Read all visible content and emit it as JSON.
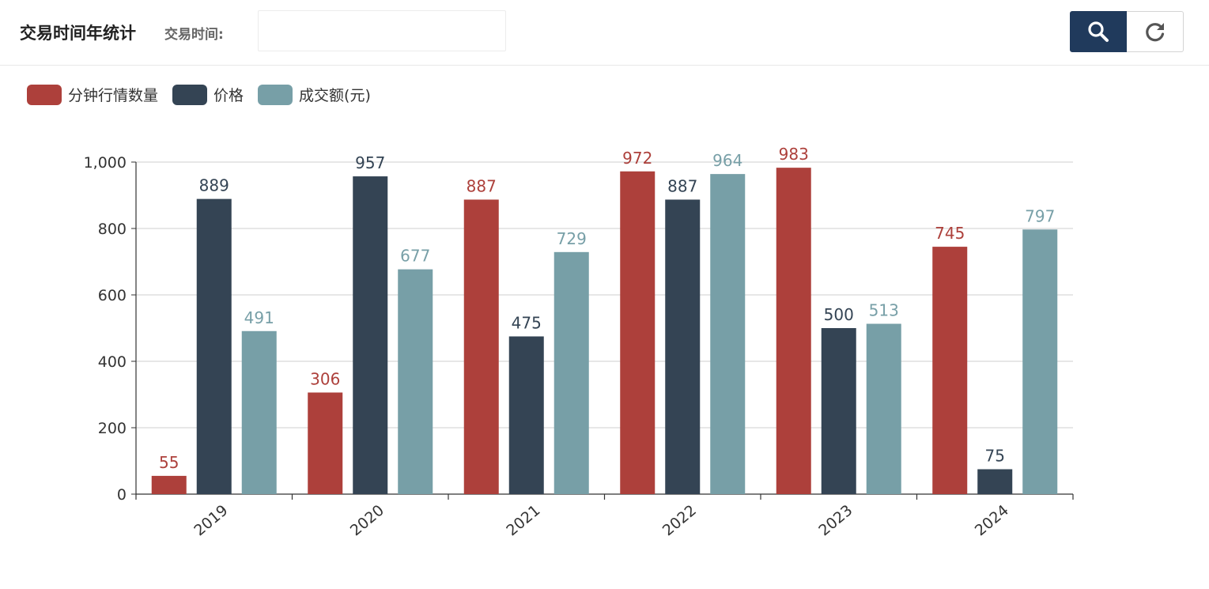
{
  "header": {
    "title": "交易时间年统计",
    "date_label": "交易时间:",
    "date_value": "",
    "search_icon": "search-icon",
    "reset_icon": "refresh-icon",
    "accent_color": "#203a5c"
  },
  "chart_data": {
    "type": "bar",
    "categories": [
      "2019",
      "2020",
      "2021",
      "2022",
      "2023",
      "2024"
    ],
    "series": [
      {
        "name": "分钟行情数量",
        "color": "#ad403b",
        "values": [
          55,
          306,
          887,
          972,
          983,
          745
        ]
      },
      {
        "name": "价格",
        "color": "#344454",
        "values": [
          889,
          957,
          475,
          887,
          500,
          75
        ]
      },
      {
        "name": "成交额(元)",
        "color": "#779fa7",
        "values": [
          491,
          677,
          729,
          964,
          513,
          797
        ]
      }
    ],
    "ylim": [
      0,
      1000
    ],
    "yticks": [
      "0",
      "200",
      "400",
      "600",
      "800",
      "1,000"
    ],
    "ytick_values": [
      0,
      200,
      400,
      600,
      800,
      1000
    ],
    "grid": true,
    "legend_position": "top-left",
    "xlabel": "",
    "ylabel": ""
  }
}
